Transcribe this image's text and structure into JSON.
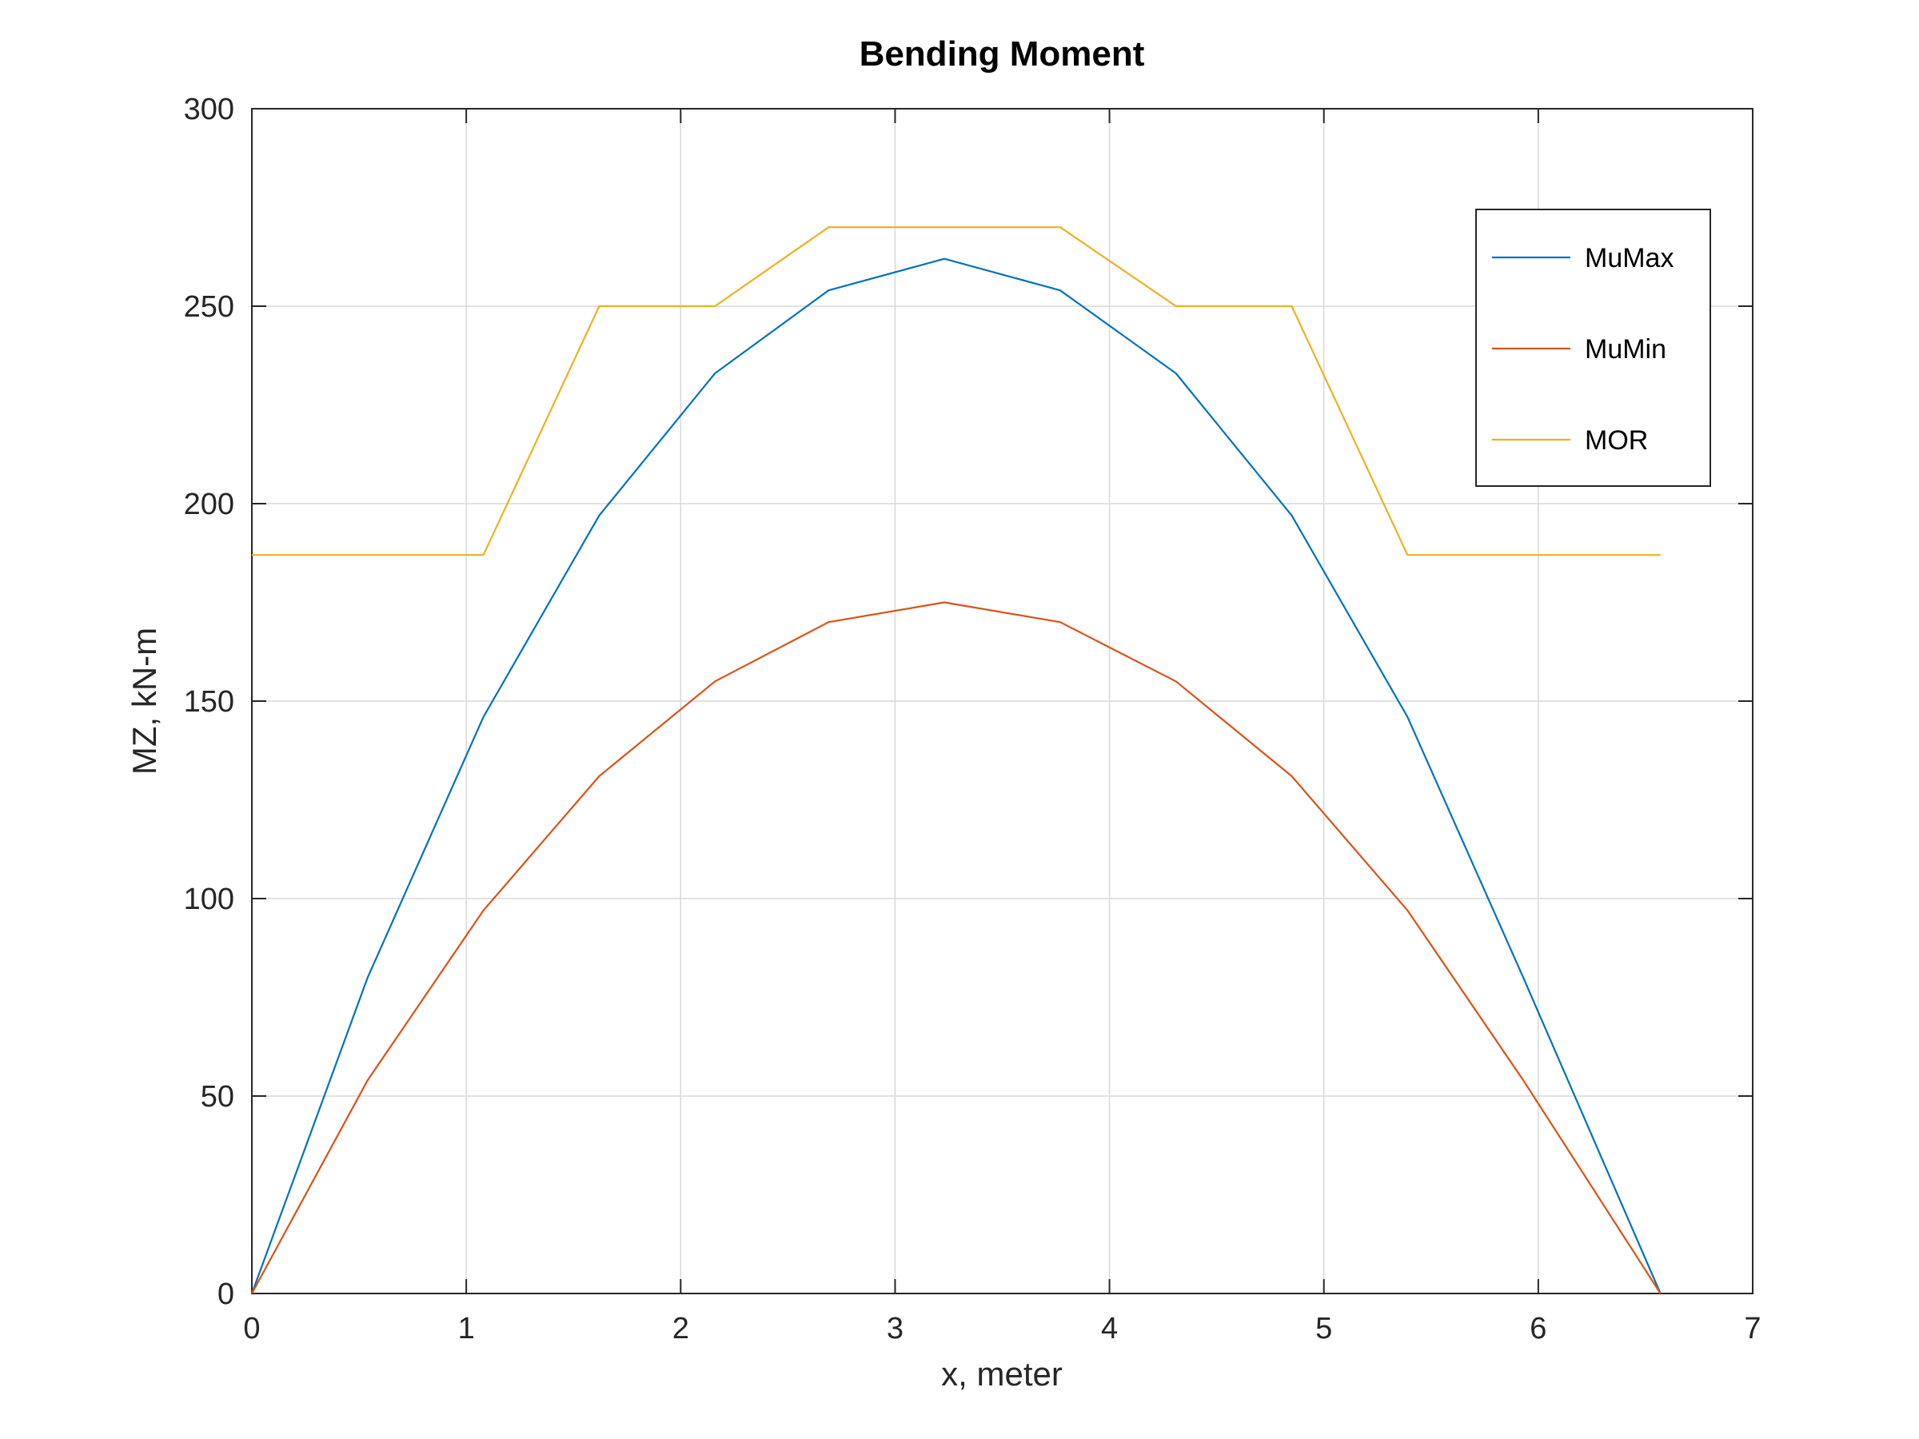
{
  "chart_data": {
    "type": "line",
    "title": "Bending Moment",
    "xlabel": "x, meter",
    "ylabel": "MZ, kN-m",
    "xlim": [
      0,
      7
    ],
    "ylim": [
      0,
      300
    ],
    "xticks": [
      0,
      1,
      2,
      3,
      4,
      5,
      6,
      7
    ],
    "yticks": [
      0,
      50,
      100,
      150,
      200,
      250,
      300
    ],
    "grid": true,
    "legend_position": "top-right",
    "x": [
      0,
      0.54,
      1.08,
      1.62,
      2.16,
      2.69,
      3.23,
      3.77,
      4.31,
      4.85,
      5.39,
      5.93,
      6.57
    ],
    "series": [
      {
        "name": "MuMax",
        "color": "#0072BD",
        "x": [
          0,
          0.54,
          1.08,
          1.62,
          2.16,
          2.69,
          3.23,
          3.77,
          4.31,
          4.85,
          5.39,
          5.93,
          6.57
        ],
        "values": [
          0,
          80,
          146,
          197,
          233,
          254,
          262,
          254,
          233,
          197,
          146,
          80,
          0
        ]
      },
      {
        "name": "MuMin",
        "color": "#D95319",
        "x": [
          0,
          0.54,
          1.08,
          1.62,
          2.16,
          2.69,
          3.23,
          3.77,
          4.31,
          4.85,
          5.39,
          5.93,
          6.57
        ],
        "values": [
          0,
          54,
          97,
          131,
          155,
          170,
          175,
          170,
          155,
          131,
          97,
          54,
          0
        ]
      },
      {
        "name": "MOR",
        "color": "#EDB120",
        "x": [
          0,
          1.08,
          1.62,
          2.16,
          2.69,
          3.77,
          4.31,
          4.85,
          5.39,
          6.57
        ],
        "values": [
          187,
          187,
          250,
          250,
          270,
          270,
          250,
          250,
          187,
          187
        ]
      }
    ]
  }
}
